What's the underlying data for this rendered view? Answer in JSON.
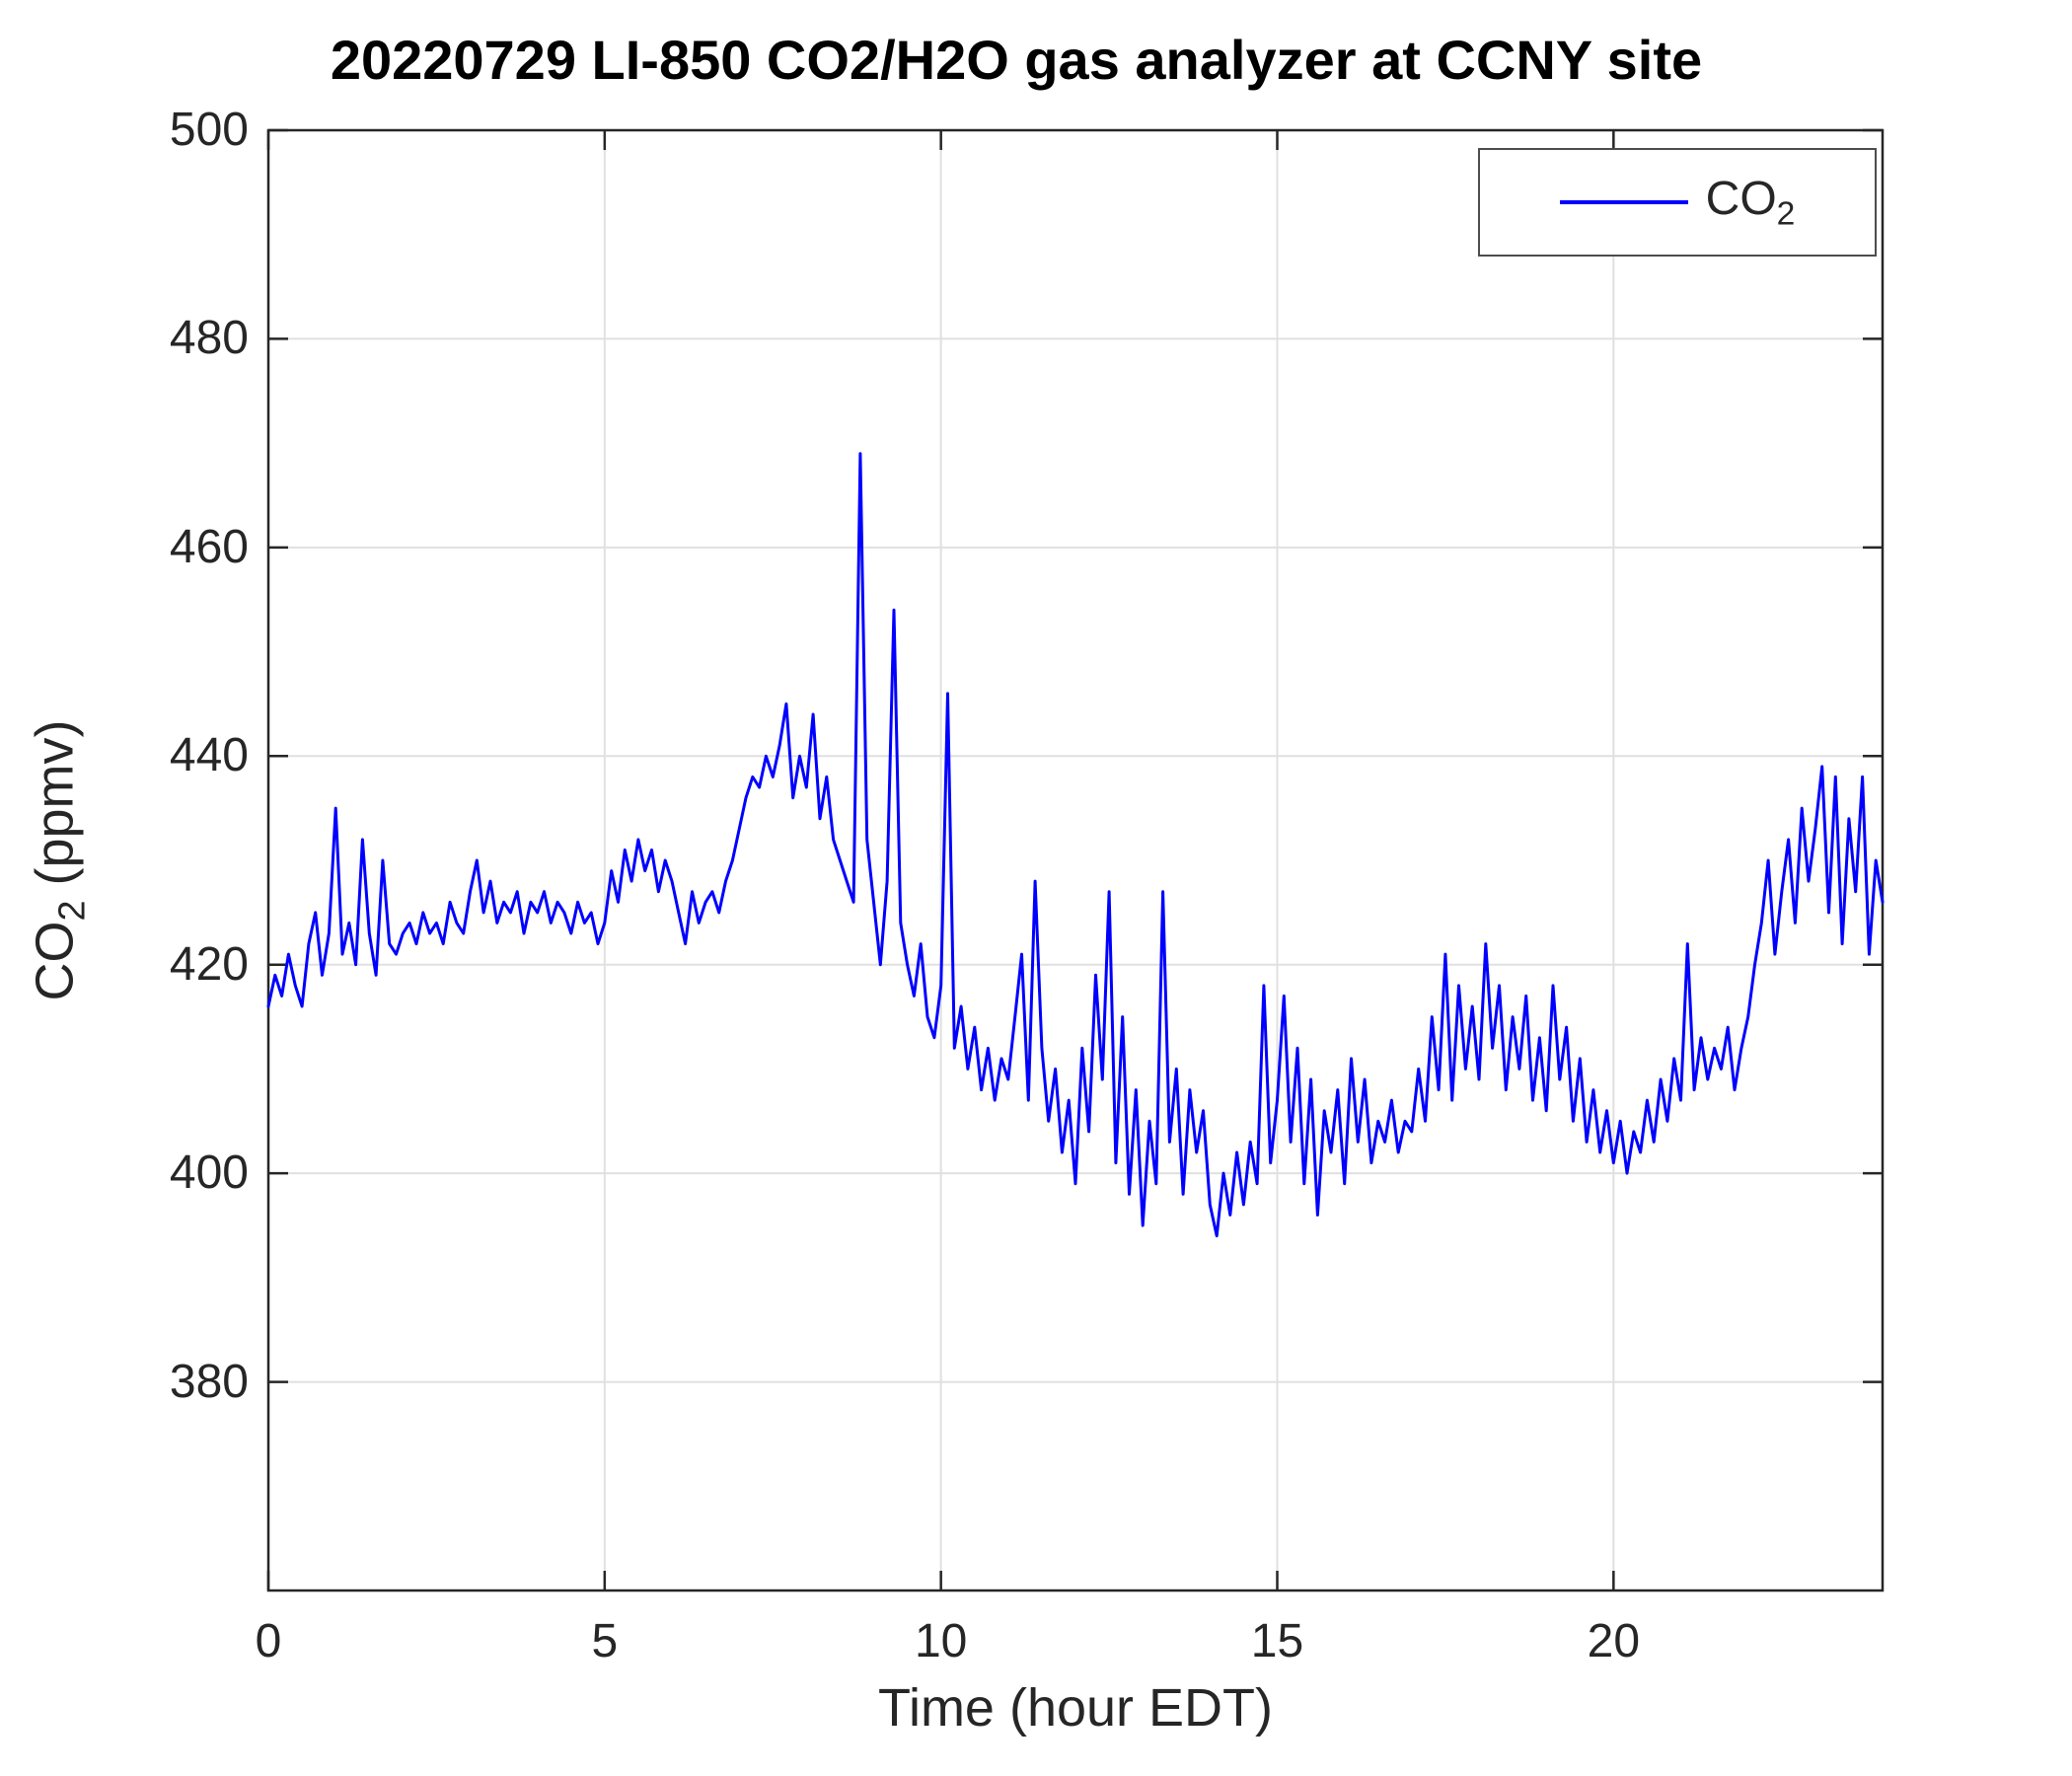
{
  "chart": {
    "title": "20220729 LI-850 CO2/H2O gas analyzer at CCNY site"
  },
  "labels": {
    "y_main": "CO",
    "y_sub": "2",
    "y_rest": " (ppmv)",
    "x": "Time (hour EDT)"
  },
  "legend": {
    "main": "CO",
    "sub": "2"
  },
  "chart_data": {
    "type": "line",
    "title": "20220729 LI-850 CO2/H2O gas analyzer at CCNY site",
    "xlabel": "Time (hour EDT)",
    "ylabel": "CO_2 (ppmv)",
    "series_name": "CO_2",
    "line_color": "#0000FF",
    "grid": true,
    "legend_position": "top-right",
    "xlim": [
      0,
      24
    ],
    "ylim": [
      360,
      500
    ],
    "xticks": [
      0,
      5,
      10,
      15,
      20
    ],
    "yticks": [
      380,
      400,
      420,
      440,
      460,
      480,
      500
    ],
    "x_start": 0,
    "x_step": 0.1,
    "values": [
      416,
      419,
      417,
      421,
      418,
      416,
      422,
      425,
      419,
      423,
      435,
      421,
      424,
      420,
      432,
      423,
      419,
      430,
      422,
      421,
      423,
      424,
      422,
      425,
      423,
      424,
      422,
      426,
      424,
      423,
      427,
      430,
      425,
      428,
      424,
      426,
      425,
      427,
      423,
      426,
      425,
      427,
      424,
      426,
      425,
      423,
      426,
      424,
      425,
      422,
      424,
      429,
      426,
      431,
      428,
      432,
      429,
      431,
      427,
      430,
      428,
      425,
      422,
      427,
      424,
      426,
      427,
      425,
      428,
      430,
      433,
      436,
      438,
      437,
      440,
      438,
      441,
      445,
      436,
      440,
      437,
      444,
      434,
      438,
      432,
      430,
      428,
      426,
      469,
      432,
      426,
      420,
      428,
      454,
      424,
      420,
      417,
      422,
      415,
      413,
      418,
      446,
      412,
      416,
      410,
      414,
      408,
      412,
      407,
      411,
      409,
      415,
      421,
      407,
      428,
      412,
      405,
      410,
      402,
      407,
      399,
      412,
      404,
      419,
      409,
      427,
      401,
      415,
      398,
      408,
      395,
      405,
      399,
      427,
      403,
      410,
      398,
      408,
      402,
      406,
      397,
      394,
      400,
      396,
      402,
      397,
      403,
      399,
      418,
      401,
      407,
      417,
      403,
      412,
      399,
      409,
      396,
      406,
      402,
      408,
      399,
      411,
      403,
      409,
      401,
      405,
      403,
      407,
      402,
      405,
      404,
      410,
      405,
      415,
      408,
      421,
      407,
      418,
      410,
      416,
      409,
      422,
      412,
      418,
      408,
      415,
      410,
      417,
      407,
      413,
      406,
      418,
      409,
      414,
      405,
      411,
      403,
      408,
      402,
      406,
      401,
      405,
      400,
      404,
      402,
      407,
      403,
      409,
      405,
      411,
      407,
      422,
      408,
      413,
      409,
      412,
      410,
      414,
      408,
      412,
      415,
      420,
      424,
      430,
      421,
      427,
      432,
      424,
      435,
      428,
      433,
      439,
      425,
      438,
      422,
      434,
      427,
      438,
      421,
      430,
      426
    ]
  }
}
